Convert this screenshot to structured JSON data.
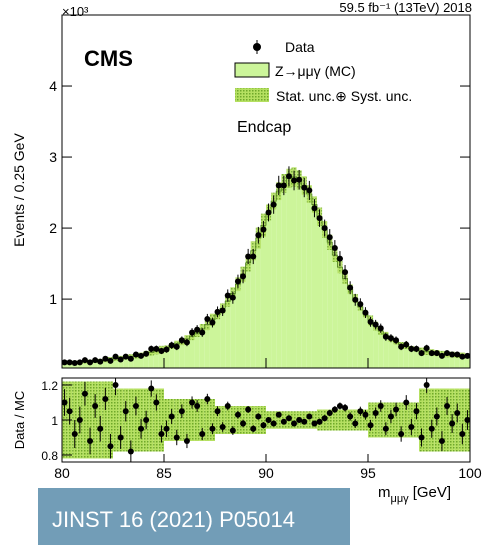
{
  "chart_data": {
    "type": "hist_ratio",
    "lumi_label": "59.5 fb⁻¹ (13TeV) 2018",
    "experiment": "CMS",
    "y_multiplier": "×10³",
    "y_label": "Events / 0.25 GeV",
    "ratio_label": "Data / MC",
    "x_label": "m",
    "x_label_sub": "μμγ",
    "x_label_unit": "[GeV]",
    "region": "Endcap",
    "legend": {
      "data": "Data",
      "mc": "Z→μμγ (MC)",
      "unc": "Stat. unc.⊕ Syst. unc."
    },
    "reference": "JINST 16 (2021) P05014",
    "bins": [
      80,
      80.25,
      80.5,
      80.75,
      81,
      81.25,
      81.5,
      81.75,
      82,
      82.25,
      82.5,
      82.75,
      83,
      83.25,
      83.5,
      83.75,
      84,
      84.25,
      84.5,
      84.75,
      85,
      85.25,
      85.5,
      85.75,
      86,
      86.25,
      86.5,
      86.75,
      87,
      87.25,
      87.5,
      87.75,
      88,
      88.25,
      88.5,
      88.75,
      89,
      89.25,
      89.5,
      89.75,
      90,
      90.25,
      90.5,
      90.75,
      91,
      91.25,
      91.5,
      91.75,
      92,
      92.25,
      92.5,
      92.75,
      93,
      93.25,
      93.5,
      93.75,
      94,
      94.25,
      94.5,
      94.75,
      95,
      95.25,
      95.5,
      95.75,
      96,
      96.25,
      96.5,
      96.75,
      97,
      97.25,
      97.5,
      97.75,
      98,
      98.25,
      98.5,
      98.75,
      99,
      99.25,
      99.5,
      99.75,
      100
    ],
    "mc": [
      0.1,
      0.1,
      0.11,
      0.11,
      0.12,
      0.12,
      0.13,
      0.13,
      0.14,
      0.15,
      0.16,
      0.17,
      0.18,
      0.19,
      0.2,
      0.21,
      0.23,
      0.25,
      0.27,
      0.29,
      0.31,
      0.34,
      0.37,
      0.4,
      0.44,
      0.48,
      0.53,
      0.58,
      0.64,
      0.71,
      0.78,
      0.87,
      0.97,
      1.08,
      1.21,
      1.35,
      1.51,
      1.68,
      1.86,
      2.04,
      2.22,
      2.38,
      2.52,
      2.63,
      2.7,
      2.72,
      2.68,
      2.6,
      2.48,
      2.33,
      2.16,
      1.98,
      1.8,
      1.62,
      1.45,
      1.29,
      1.14,
      1.01,
      0.89,
      0.79,
      0.7,
      0.62,
      0.55,
      0.49,
      0.44,
      0.4,
      0.36,
      0.33,
      0.31,
      0.29,
      0.27,
      0.26,
      0.25,
      0.24,
      0.23,
      0.22,
      0.22,
      0.21,
      0.21,
      0.2
    ],
    "data": [
      0.11,
      0.11,
      0.1,
      0.11,
      0.14,
      0.11,
      0.14,
      0.12,
      0.16,
      0.13,
      0.19,
      0.15,
      0.19,
      0.16,
      0.22,
      0.2,
      0.23,
      0.3,
      0.3,
      0.27,
      0.29,
      0.35,
      0.33,
      0.42,
      0.39,
      0.53,
      0.57,
      0.53,
      0.72,
      0.67,
      0.82,
      0.84,
      1.05,
      1.02,
      1.25,
      1.32,
      1.6,
      1.6,
      1.9,
      1.98,
      2.22,
      2.33,
      2.6,
      2.6,
      2.73,
      2.67,
      2.68,
      2.57,
      2.53,
      2.28,
      2.14,
      2.0,
      1.87,
      1.72,
      1.57,
      1.38,
      1.16,
      0.99,
      0.93,
      0.81,
      0.68,
      0.64,
      0.59,
      0.47,
      0.45,
      0.42,
      0.33,
      0.36,
      0.3,
      0.3,
      0.24,
      0.31,
      0.24,
      0.24,
      0.2,
      0.24,
      0.22,
      0.22,
      0.19,
      0.2
    ],
    "rel_unc": [
      0.22,
      0.22,
      0.22,
      0.22,
      0.22,
      0.22,
      0.22,
      0.22,
      0.22,
      0.22,
      0.18,
      0.18,
      0.18,
      0.18,
      0.18,
      0.18,
      0.18,
      0.18,
      0.18,
      0.18,
      0.12,
      0.12,
      0.12,
      0.12,
      0.12,
      0.12,
      0.12,
      0.12,
      0.12,
      0.12,
      0.08,
      0.08,
      0.08,
      0.08,
      0.08,
      0.08,
      0.08,
      0.08,
      0.08,
      0.08,
      0.05,
      0.05,
      0.05,
      0.05,
      0.05,
      0.05,
      0.05,
      0.05,
      0.05,
      0.05,
      0.06,
      0.06,
      0.06,
      0.06,
      0.06,
      0.06,
      0.06,
      0.06,
      0.06,
      0.06,
      0.1,
      0.1,
      0.1,
      0.1,
      0.1,
      0.1,
      0.1,
      0.1,
      0.1,
      0.1,
      0.18,
      0.18,
      0.18,
      0.18,
      0.18,
      0.18,
      0.18,
      0.18,
      0.18,
      0.18
    ],
    "ratio": [
      1.1,
      1.05,
      0.92,
      1.0,
      1.15,
      0.88,
      1.08,
      0.95,
      1.12,
      0.85,
      1.2,
      0.9,
      1.05,
      0.82,
      1.08,
      0.95,
      1.0,
      1.18,
      1.1,
      0.92,
      0.95,
      1.02,
      0.9,
      1.05,
      0.88,
      1.1,
      1.08,
      0.92,
      1.12,
      0.95,
      1.05,
      0.96,
      1.08,
      0.94,
      1.03,
      0.98,
      1.06,
      0.95,
      1.02,
      0.97,
      1.0,
      0.98,
      1.03,
      0.99,
      1.01,
      0.98,
      1.0,
      0.99,
      1.02,
      0.98,
      0.99,
      1.01,
      1.04,
      1.06,
      1.08,
      1.07,
      1.02,
      0.98,
      1.05,
      1.03,
      0.97,
      1.04,
      1.08,
      0.95,
      1.02,
      1.06,
      0.92,
      1.1,
      0.96,
      1.05,
      0.9,
      1.2,
      0.95,
      1.02,
      0.88,
      1.08,
      0.98,
      1.04,
      0.92,
      1.0
    ],
    "xlim": [
      80,
      100
    ],
    "xticks": [
      80,
      85,
      90,
      95,
      100
    ],
    "ylim": [
      0.03,
      5.0
    ],
    "yticks": [
      1,
      2,
      3,
      4
    ],
    "ratio_ylim": [
      0.76,
      1.24
    ],
    "ratio_yticks": [
      0.8,
      1,
      1.2
    ],
    "colors": {
      "mc": "#ccf59a",
      "mc_edge": "#4a7a1a",
      "unc": "#8dc63f",
      "data": "#000000"
    }
  }
}
